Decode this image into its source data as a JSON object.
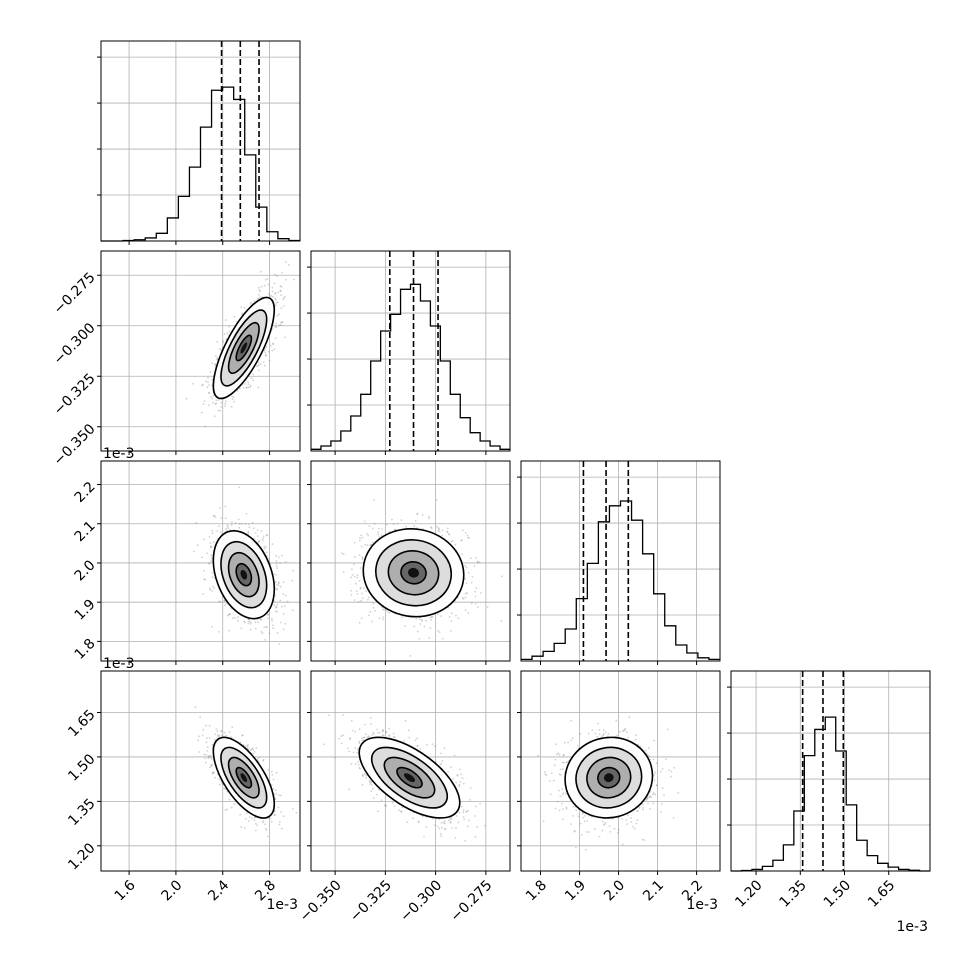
{
  "chart_data": {
    "type": "corner",
    "parameters": [
      {
        "ticks": [
          1.6,
          2.0,
          2.4,
          2.8
        ],
        "tick_labels": [
          "1.6",
          "2.0",
          "2.4",
          "2.8"
        ],
        "range": [
          1.36,
          3.06
        ],
        "offset": "1e-3",
        "hist": [
          0,
          0,
          0.003,
          0.008,
          0.02,
          0.05,
          0.15,
          0.29,
          0.48,
          0.74,
          0.98,
          1.0,
          0.92,
          0.56,
          0.22,
          0.06,
          0.015,
          0.003
        ],
        "quantiles": [
          2.39,
          2.55,
          2.71
        ],
        "hist_max": 1.3
      },
      {
        "ticks": [
          -0.35,
          -0.325,
          -0.3,
          -0.275
        ],
        "tick_labels": [
          "−0.350",
          "−0.325",
          "−0.300",
          "−0.275"
        ],
        "range": [
          -0.362,
          -0.263
        ],
        "offset": "",
        "hist": [
          0.01,
          0.03,
          0.06,
          0.12,
          0.21,
          0.34,
          0.54,
          0.72,
          0.82,
          0.97,
          1.0,
          0.9,
          0.75,
          0.54,
          0.34,
          0.2,
          0.11,
          0.06,
          0.03,
          0.01
        ],
        "quantiles": [
          -0.3228,
          -0.311,
          -0.2988
        ],
        "hist_max": 1.2
      },
      {
        "ticks": [
          1.8,
          1.9,
          2.0,
          2.1,
          2.2
        ],
        "tick_labels": [
          "1.8",
          "1.9",
          "2.0",
          "2.1",
          "2.2"
        ],
        "range": [
          1.75,
          2.26
        ],
        "offset": "1e-3",
        "hist": [
          0.01,
          0.03,
          0.06,
          0.11,
          0.2,
          0.39,
          0.61,
          0.87,
          0.97,
          1.0,
          0.88,
          0.67,
          0.42,
          0.22,
          0.1,
          0.05,
          0.02,
          0.01
        ],
        "quantiles": [
          1.91,
          1.968,
          2.025
        ],
        "hist_max": 1.25
      },
      {
        "ticks": [
          1.2,
          1.35,
          1.5,
          1.65
        ],
        "tick_labels": [
          "1.20",
          "1.35",
          "1.50",
          "1.65"
        ],
        "range": [
          1.115,
          1.79
        ],
        "offset": "1e-3",
        "hist": [
          0,
          0.003,
          0.01,
          0.03,
          0.07,
          0.17,
          0.39,
          0.75,
          0.92,
          1.0,
          0.78,
          0.43,
          0.2,
          0.1,
          0.05,
          0.025,
          0.01,
          0.005,
          0
        ],
        "quantiles": [
          1.358,
          1.427,
          1.496
        ],
        "hist_max": 1.3
      }
    ],
    "pairs": [
      {
        "row": 1,
        "col": 0,
        "center": [
          2.58,
          -0.311
        ],
        "sd": [
          0.13,
          0.0125
        ],
        "corr": 0.75
      },
      {
        "row": 2,
        "col": 0,
        "center": [
          2.58,
          1.97
        ],
        "sd": [
          0.13,
          0.056
        ],
        "corr": -0.33
      },
      {
        "row": 2,
        "col": 1,
        "center": [
          -0.311,
          1.975
        ],
        "sd": [
          0.0125,
          0.056
        ],
        "corr": -0.05
      },
      {
        "row": 3,
        "col": 0,
        "center": [
          2.58,
          1.43
        ],
        "sd": [
          0.13,
          0.068
        ],
        "corr": -0.65
      },
      {
        "row": 3,
        "col": 1,
        "center": [
          -0.313,
          1.43
        ],
        "sd": [
          0.0125,
          0.068
        ],
        "corr": -0.62
      },
      {
        "row": 3,
        "col": 2,
        "center": [
          1.975,
          1.43
        ],
        "sd": [
          0.056,
          0.068
        ],
        "corr": 0.05
      }
    ],
    "grid": true
  }
}
